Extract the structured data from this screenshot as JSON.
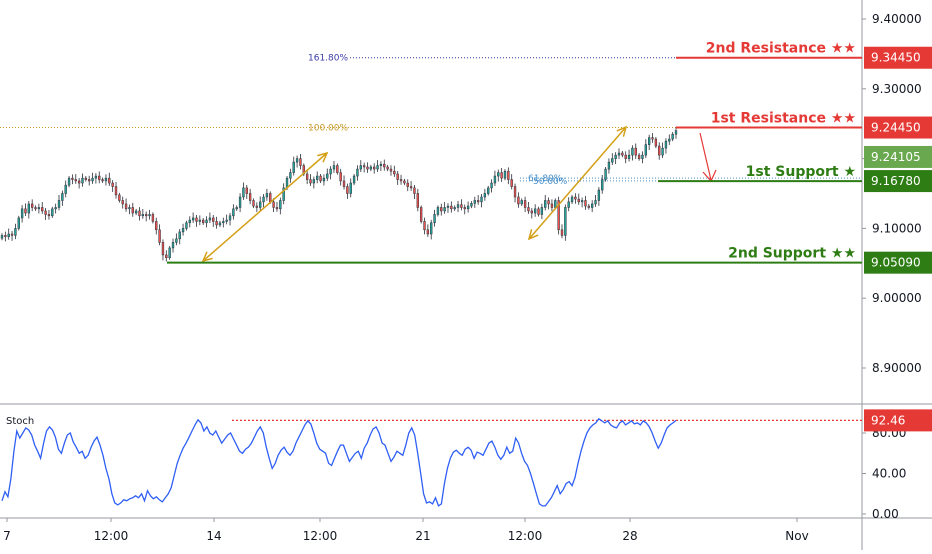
{
  "chart_data": {
    "type": "candlestick",
    "price_axis": {
      "ticks": [
        "9.40000",
        "9.30000",
        "9.20000",
        "9.10000",
        "9.00000",
        "8.90000"
      ],
      "tick_values": [
        9.4,
        9.3,
        9.2,
        9.1,
        9.0,
        8.9
      ],
      "ylim": [
        8.83,
        9.425
      ]
    },
    "time_axis": {
      "ticks": [
        "7",
        "12:00",
        "14",
        "12:00",
        "21",
        "12:00",
        "28",
        "Nov"
      ]
    },
    "current_price": {
      "label": "9.24105",
      "value": 9.24105,
      "color": "#6aa84f"
    },
    "levels": [
      {
        "name": "2nd Resistance ★★",
        "value": 9.3445,
        "tag": "9.34450",
        "color": "#e53935",
        "kind": "resistance"
      },
      {
        "name": "1st Resistance ★★",
        "value": 9.2445,
        "tag": "9.24450",
        "color": "#e53935",
        "kind": "resistance"
      },
      {
        "name": "1st Support ★",
        "value": 9.1678,
        "tag": "9.16780",
        "color": "#2e7d14",
        "kind": "support"
      },
      {
        "name": "2nd Support ★★",
        "value": 9.0509,
        "tag": "9.05090",
        "color": "#2e7d14",
        "kind": "support"
      }
    ],
    "fibonacci": [
      {
        "label": "161.80%",
        "value": 9.3445,
        "color": "#3a3aa8"
      },
      {
        "label": "100.00%",
        "value": 9.2445,
        "color": "#c89a2b"
      },
      {
        "label": "50.00%",
        "value": 9.168,
        "color": "#4a90c8"
      },
      {
        "label": "61.80%",
        "value": 9.172,
        "color": "#4a90c8"
      }
    ],
    "candles": {
      "up_color": "#26a69a",
      "down_color": "#ef5350",
      "close": [
        9.09,
        9.088,
        9.092,
        9.09,
        9.1,
        9.115,
        9.128,
        9.122,
        9.135,
        9.13,
        9.128,
        9.13,
        9.125,
        9.12,
        9.118,
        9.128,
        9.13,
        9.14,
        9.15,
        9.162,
        9.172,
        9.17,
        9.168,
        9.165,
        9.172,
        9.17,
        9.168,
        9.172,
        9.175,
        9.17,
        9.168,
        9.172,
        9.165,
        9.16,
        9.148,
        9.14,
        9.135,
        9.128,
        9.13,
        9.122,
        9.125,
        9.118,
        9.12,
        9.118,
        9.12,
        9.11,
        9.098,
        9.08,
        9.062,
        9.058,
        9.072,
        9.08,
        9.085,
        9.095,
        9.1,
        9.108,
        9.112,
        9.115,
        9.11,
        9.112,
        9.108,
        9.112,
        9.115,
        9.11,
        9.105,
        9.108,
        9.11,
        9.112,
        9.118,
        9.128,
        9.13,
        9.145,
        9.158,
        9.15,
        9.14,
        9.132,
        9.13,
        9.138,
        9.145,
        9.15,
        9.138,
        9.13,
        9.128,
        9.14,
        9.158,
        9.172,
        9.18,
        9.195,
        9.2,
        9.19,
        9.178,
        9.17,
        9.165,
        9.17,
        9.175,
        9.168,
        9.172,
        9.178,
        9.185,
        9.19,
        9.18,
        9.168,
        9.16,
        9.15,
        9.165,
        9.175,
        9.185,
        9.19,
        9.188,
        9.185,
        9.188,
        9.185,
        9.19,
        9.192,
        9.188,
        9.185,
        9.182,
        9.178,
        9.17,
        9.168,
        9.165,
        9.16,
        9.158,
        9.15,
        9.13,
        9.11,
        9.098,
        9.092,
        9.108,
        9.12,
        9.13,
        9.125,
        9.13,
        9.132,
        9.128,
        9.13,
        9.134,
        9.13,
        9.128,
        9.132,
        9.136,
        9.14,
        9.138,
        9.145,
        9.15,
        9.158,
        9.165,
        9.175,
        9.18,
        9.172,
        9.182,
        9.17,
        9.16,
        9.145,
        9.135,
        9.14,
        9.13,
        9.125,
        9.122,
        9.128,
        9.12,
        9.13,
        9.14,
        9.135,
        9.13,
        9.14,
        9.098,
        9.09,
        9.13,
        9.138,
        9.145,
        9.142,
        9.138,
        9.14,
        9.132,
        9.13,
        9.135,
        9.14,
        9.155,
        9.17,
        9.185,
        9.195,
        9.2,
        9.205,
        9.208,
        9.205,
        9.2,
        9.205,
        9.215,
        9.205,
        9.2,
        9.205,
        9.22,
        9.23,
        9.228,
        9.218,
        9.205,
        9.215,
        9.225,
        9.228,
        9.235,
        9.24
      ]
    },
    "stochastic": {
      "title": "Stoch",
      "last_label": "92.46",
      "last_value": 92.46,
      "ticks": [
        "80.00",
        "40.00",
        "0.00"
      ],
      "tick_values": [
        80,
        40,
        0
      ],
      "ylim": [
        -5,
        105
      ],
      "color": "#2f5ff5",
      "values": [
        13,
        22,
        17,
        35,
        62,
        82,
        75,
        80,
        85,
        83,
        78,
        68,
        62,
        55,
        70,
        82,
        86,
        83,
        76,
        64,
        60,
        70,
        78,
        80,
        71,
        66,
        60,
        62,
        55,
        58,
        66,
        72,
        76,
        68,
        58,
        45,
        35,
        20,
        11,
        9,
        11,
        14,
        13,
        15,
        16,
        18,
        16,
        20,
        13,
        23,
        18,
        15,
        17,
        14,
        12,
        16,
        20,
        26,
        38,
        50,
        58,
        65,
        70,
        76,
        82,
        88,
        93,
        90,
        82,
        86,
        80,
        78,
        82,
        76,
        70,
        74,
        78,
        80,
        74,
        68,
        62,
        60,
        64,
        66,
        70,
        76,
        82,
        86,
        80,
        66,
        55,
        45,
        50,
        58,
        63,
        66,
        61,
        58,
        62,
        70,
        76,
        82,
        88,
        92,
        89,
        80,
        70,
        64,
        62,
        60,
        50,
        48,
        55,
        62,
        68,
        68,
        60,
        52,
        56,
        60,
        62,
        55,
        65,
        70,
        78,
        84,
        86,
        80,
        70,
        68,
        60,
        52,
        56,
        62,
        60,
        58,
        68,
        80,
        85,
        78,
        60,
        40,
        20,
        11,
        12,
        10,
        16,
        8,
        10,
        30,
        45,
        55,
        61,
        63,
        60,
        58,
        64,
        66,
        63,
        55,
        61,
        60,
        58,
        64,
        70,
        72,
        66,
        58,
        54,
        58,
        66,
        60,
        62,
        75,
        70,
        60,
        52,
        48,
        40,
        30,
        20,
        10,
        8,
        8,
        12,
        16,
        22,
        28,
        20,
        24,
        30,
        32,
        28,
        36,
        50,
        62,
        72,
        80,
        85,
        88,
        90,
        94,
        92,
        90,
        92,
        88,
        86,
        85,
        90,
        92,
        88,
        90,
        92,
        89,
        90,
        88,
        92,
        90,
        86,
        80,
        72,
        65,
        70,
        78,
        85,
        88,
        90,
        92.46
      ]
    },
    "stoch_ref_level": 92.46
  }
}
